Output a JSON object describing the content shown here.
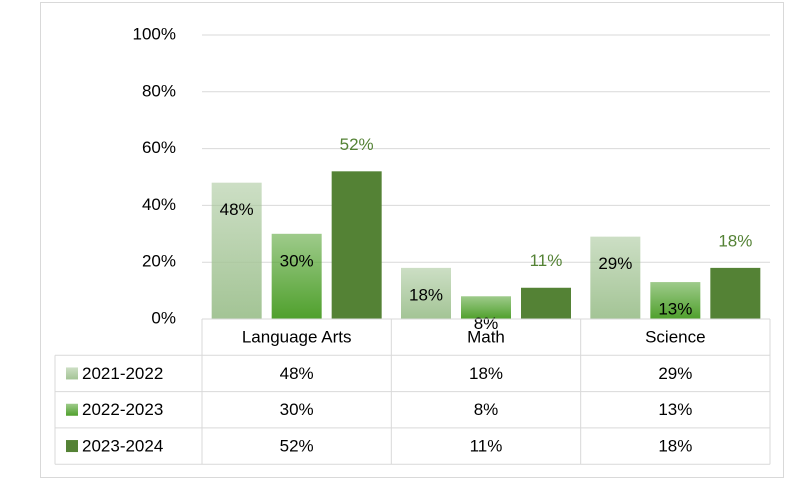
{
  "chart_data": {
    "type": "bar",
    "categories": [
      "Language Arts",
      "Math",
      "Science"
    ],
    "series": [
      {
        "name": "2021-2022",
        "color": "#a3c495",
        "gradient": true,
        "values": [
          48,
          18,
          29
        ],
        "value_labels": [
          "48%",
          "18%",
          "29%"
        ]
      },
      {
        "name": "2022-2023",
        "color": "#4fa02c",
        "gradient": true,
        "values": [
          30,
          8,
          13
        ],
        "value_labels": [
          "30%",
          "8%",
          "13%"
        ]
      },
      {
        "name": "2023-2024",
        "color": "#548235",
        "gradient": false,
        "values": [
          52,
          11,
          18
        ],
        "value_labels": [
          "52%",
          "11%",
          "18%"
        ]
      }
    ],
    "ylim": [
      0,
      100
    ],
    "yticks": [
      {
        "value": 0,
        "label": "0%"
      },
      {
        "value": 20,
        "label": "20%"
      },
      {
        "value": 40,
        "label": "40%"
      },
      {
        "value": 60,
        "label": "60%"
      },
      {
        "value": 80,
        "label": "80%"
      },
      {
        "value": 100,
        "label": "100%"
      }
    ],
    "grid": true,
    "data_table": true
  }
}
